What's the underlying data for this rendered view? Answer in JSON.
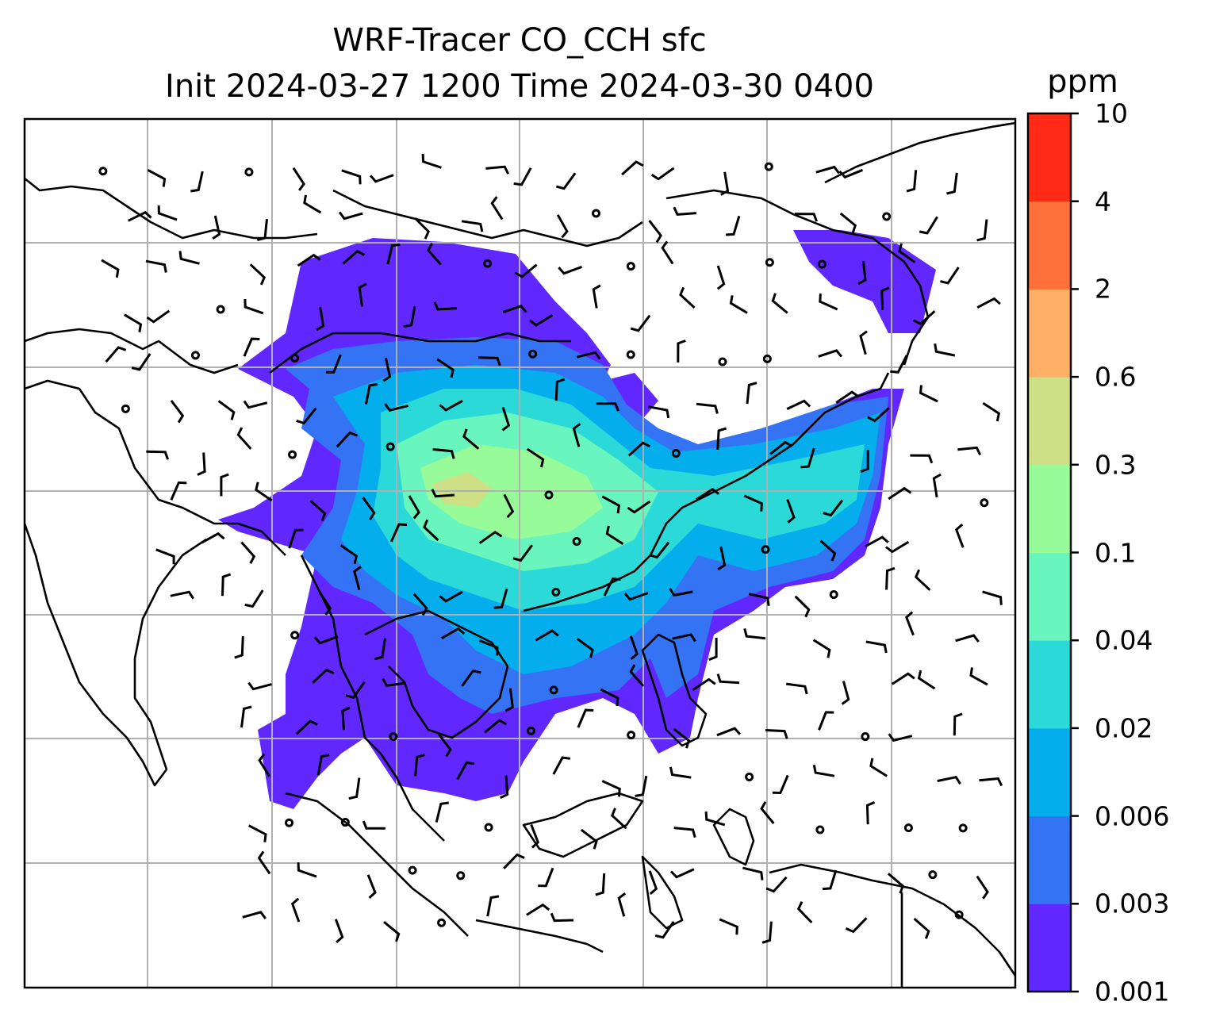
{
  "title_line1": "WRF-Tracer CO_CCH sfc",
  "title_line2": "Init 2024-03-27 1200 Time 2024-03-30 0400",
  "colorbar": {
    "unit": "ppm",
    "levels": [
      "0.001",
      "0.003",
      "0.006",
      "0.02",
      "0.04",
      "0.1",
      "0.3",
      "0.6",
      "2",
      "4",
      "10"
    ],
    "colors": [
      "#6028ff",
      "#3474f4",
      "#04aeec",
      "#2ad9d8",
      "#68f5be",
      "#98fb9a",
      "#cfdf86",
      "#feb066",
      "#ff703a",
      "#ff2a15"
    ]
  },
  "map": {
    "gridlines": "on",
    "features": [
      "coastlines",
      "country borders",
      "wind barbs",
      "CO_CCH tracer concentration shading"
    ],
    "extent_note": "South and East Asia with Maritime Continent"
  }
}
